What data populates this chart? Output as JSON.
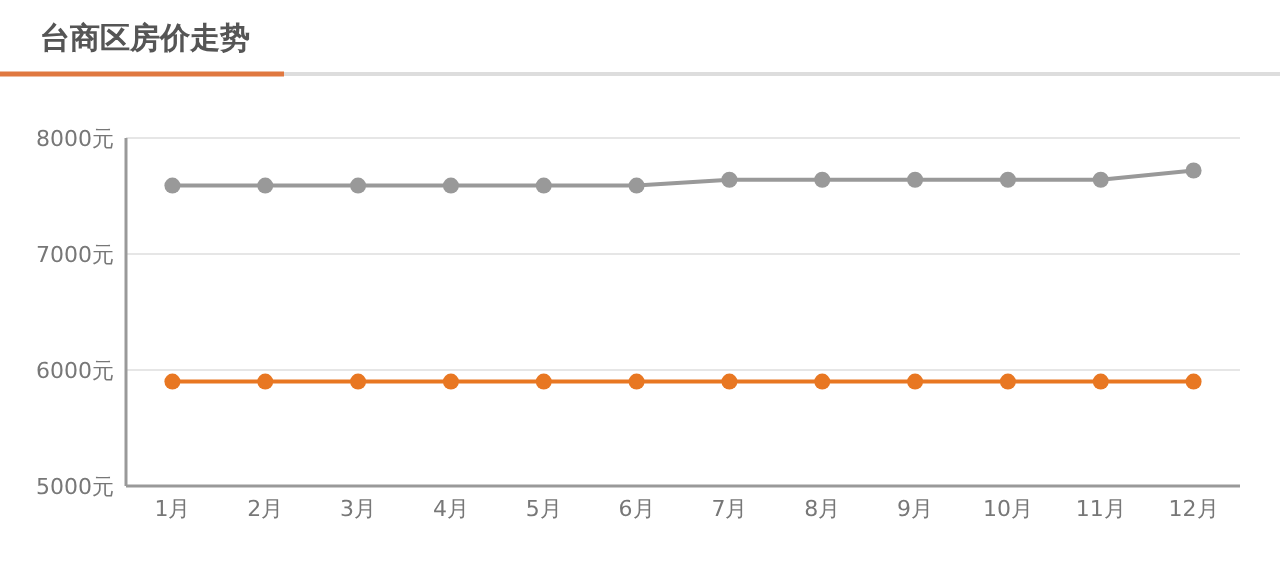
{
  "chart_data": {
    "type": "line",
    "title": "台商区房价走势",
    "categories": [
      "1月",
      "2月",
      "3月",
      "4月",
      "5月",
      "6月",
      "7月",
      "8月",
      "9月",
      "10月",
      "11月",
      "12月"
    ],
    "series": [
      {
        "color": "#999999",
        "values": [
          7590,
          7590,
          7590,
          7590,
          7590,
          7590,
          7640,
          7640,
          7640,
          7640,
          7640,
          7720
        ]
      },
      {
        "color": "#e87722",
        "values": [
          5900,
          5900,
          5900,
          5900,
          5900,
          5900,
          5900,
          5900,
          5900,
          5900,
          5900,
          5900
        ]
      }
    ],
    "ylim": [
      5000,
      8000
    ],
    "yticks": [
      {
        "value": 5000,
        "label": "5000元"
      },
      {
        "value": 6000,
        "label": "6000元"
      },
      {
        "value": 7000,
        "label": "7000元"
      },
      {
        "value": 8000,
        "label": "8000元"
      }
    ],
    "grid": "y",
    "marker": "circle",
    "line_style": "solid"
  }
}
